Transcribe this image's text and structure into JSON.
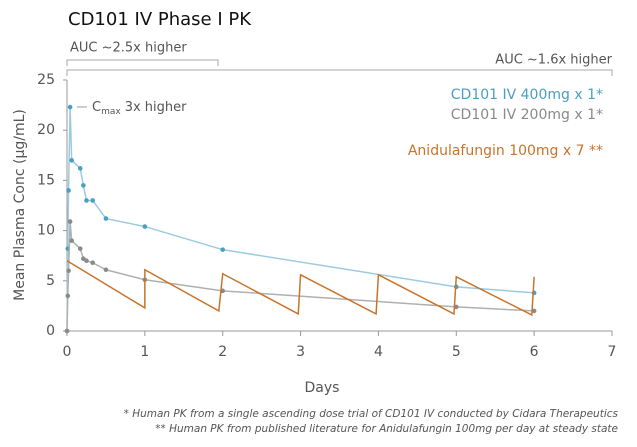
{
  "chart_data": {
    "type": "line",
    "title": "CD101 IV Phase I PK",
    "xlabel": "Days",
    "ylabel": "Mean Plasma Conc (µg/mL)",
    "xlim": [
      0,
      7
    ],
    "ylim": [
      0,
      25
    ],
    "xticks": [
      0,
      1,
      2,
      3,
      4,
      5,
      6,
      7
    ],
    "yticks": [
      0,
      5,
      10,
      15,
      20,
      25
    ],
    "grid": false,
    "annotations": {
      "auc_short": "AUC ~2.5x higher",
      "auc_long": "AUC ~1.6x higher",
      "cmax": [
        "C",
        "max",
        "3x higher"
      ]
    },
    "footnotes": [
      "* Human PK from a single ascending dose trial of CD101 IV conducted by Cidara Therapeutics",
      "** Human PK from published literature for Anidulafungin 100mg per day at steady state"
    ],
    "series": [
      {
        "name": "CD101 IV 400mg x 1*",
        "color": "#4a9fc0",
        "line_color": "#9ccbe0",
        "markers": true,
        "x": [
          0,
          0.01,
          0.02,
          0.04,
          0.06,
          0.17,
          0.21,
          0.25,
          0.33,
          0.5,
          1,
          2,
          5,
          6
        ],
        "values": [
          0,
          8.2,
          14,
          22.3,
          17,
          16.2,
          14.5,
          13,
          13,
          11.2,
          10.4,
          8.1,
          4.4,
          3.8
        ]
      },
      {
        "name": "CD101 IV 200mg x 1*",
        "color": "#8a8a8a",
        "line_color": "#b0b0b0",
        "markers": true,
        "x": [
          0,
          0.01,
          0.02,
          0.04,
          0.06,
          0.17,
          0.21,
          0.25,
          0.33,
          0.5,
          1,
          2,
          5,
          6
        ],
        "values": [
          0,
          3.5,
          6,
          10.9,
          9,
          8.2,
          7.2,
          7,
          6.8,
          6.1,
          5.1,
          4,
          2.4,
          2
        ]
      },
      {
        "name": "Anidulafungin 100mg x 7 **",
        "color": "#c8742a",
        "line_color": "#c8742a",
        "markers": false,
        "x": [
          0,
          1,
          1,
          1.95,
          2,
          2.97,
          3,
          3.97,
          4,
          4.97,
          5,
          5.97,
          6
        ],
        "values": [
          7,
          2.3,
          6.1,
          2,
          5.7,
          1.7,
          5.6,
          1.7,
          5.6,
          1.7,
          5.4,
          1.6,
          5.4
        ]
      }
    ]
  }
}
